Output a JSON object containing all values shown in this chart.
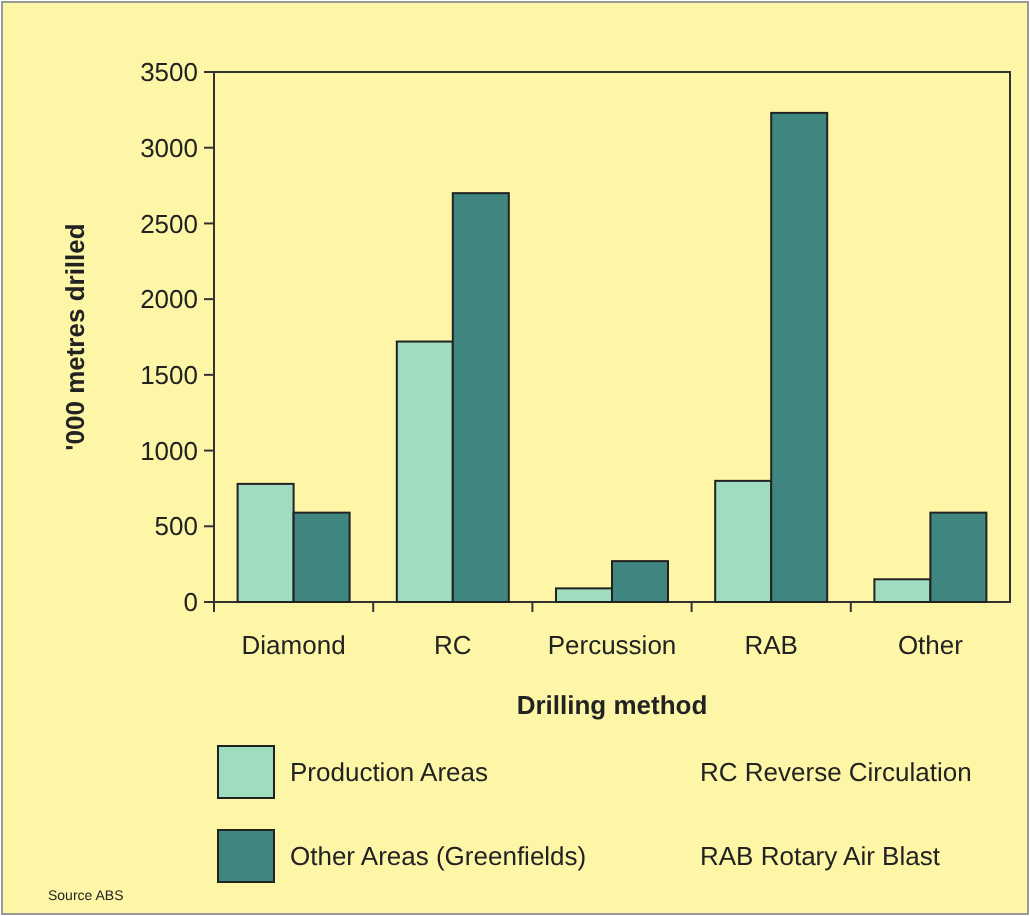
{
  "chart_data": {
    "type": "bar",
    "xlabel": "Drilling method",
    "ylabel": "'000 metres drilled",
    "categories": [
      "Diamond",
      "RC",
      "Percussion",
      "RAB",
      "Other"
    ],
    "series": [
      {
        "name": "Production Areas",
        "color": "#9fdcc0",
        "values": [
          780,
          1720,
          90,
          800,
          150
        ]
      },
      {
        "name": "Other Areas (Greenfields)",
        "color": "#3f8580",
        "values": [
          590,
          2700,
          270,
          3230,
          590
        ]
      }
    ],
    "ylim": [
      0,
      3500
    ],
    "yticks": [
      0,
      500,
      1000,
      1500,
      2000,
      2500,
      3000,
      3500
    ],
    "grid": false,
    "legend": "bottom",
    "annotations": [
      "RC Reverse Circulation",
      "RAB Rotary Air Blast",
      "Source ABS"
    ]
  }
}
